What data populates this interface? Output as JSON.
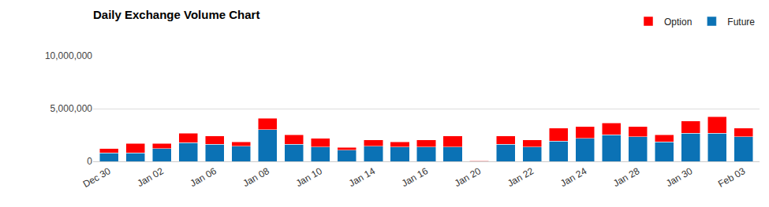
{
  "chart_data": {
    "type": "bar",
    "title": "Daily Exchange Volume Chart",
    "stacked": true,
    "legend": "top-right",
    "grid": true,
    "categories": [
      "Dec 30",
      null,
      "Jan 02",
      null,
      "Jan 06",
      null,
      "Jan 08",
      null,
      "Jan 10",
      null,
      "Jan 14",
      null,
      "Jan 16",
      null,
      "Jan 20",
      null,
      "Jan 22",
      null,
      "Jan 24",
      null,
      "Jan 28",
      null,
      "Jan 30",
      null,
      "Feb 03"
    ],
    "series": [
      {
        "name": "Future",
        "color": "#0b72b5",
        "values": [
          820000,
          820000,
          1230000,
          1780000,
          1640000,
          1440000,
          3000000,
          1640000,
          1370000,
          1050000,
          1440000,
          1370000,
          1370000,
          1370000,
          30000,
          1640000,
          1370000,
          1920000,
          2190000,
          2530000,
          2330000,
          1850000,
          2670000,
          2670000,
          2330000
        ]
      },
      {
        "name": "Option",
        "color": "#ff0000",
        "values": [
          410000,
          880000,
          470000,
          890000,
          760000,
          410000,
          1100000,
          890000,
          820000,
          280000,
          610000,
          480000,
          680000,
          1030000,
          20000,
          760000,
          680000,
          1230000,
          1100000,
          1100000,
          960000,
          680000,
          1170000,
          1580000,
          820000
        ]
      }
    ],
    "ylim": [
      0,
      10000000
    ],
    "yticks": [
      0,
      {
        "value": 5000000,
        "label": "5,000,000"
      },
      {
        "value": 10000000,
        "label": "10,000,000"
      }
    ]
  }
}
